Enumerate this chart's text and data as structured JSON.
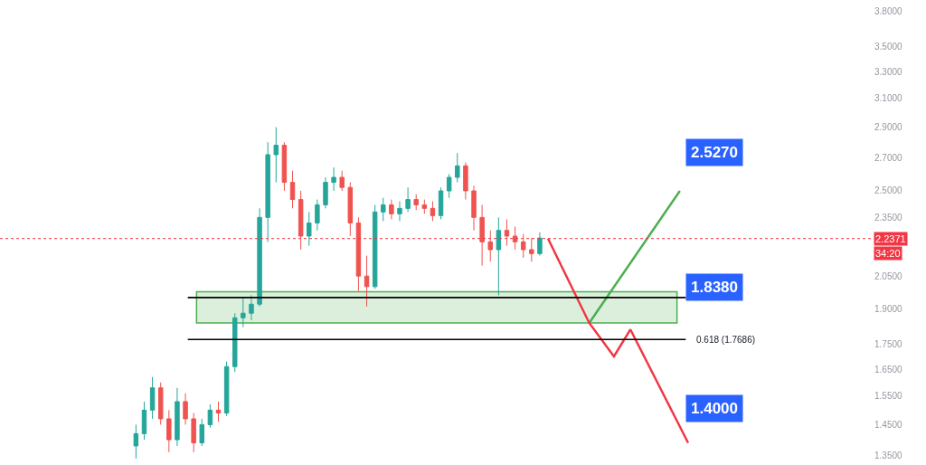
{
  "chart_data": {
    "type": "candlestick",
    "categories": [
      null,
      null,
      null,
      null,
      null,
      null,
      null,
      null,
      null,
      null,
      null,
      null,
      null,
      null,
      null,
      null,
      null,
      null,
      null,
      null,
      null,
      null,
      null,
      null,
      null,
      null,
      null,
      null,
      null,
      null,
      null,
      null,
      null,
      null,
      null,
      null,
      null,
      null,
      null,
      null,
      null,
      null,
      null,
      null,
      null,
      null,
      null,
      null,
      null,
      null,
      null,
      null,
      null,
      null,
      null,
      null,
      null,
      null,
      null,
      null,
      null,
      null,
      null,
      null,
      null,
      null,
      null,
      null,
      null,
      null,
      null,
      null,
      null,
      null,
      null,
      null,
      null,
      null,
      null,
      null,
      null,
      null,
      null,
      null,
      null,
      null,
      null,
      null,
      null,
      null,
      null,
      null,
      null,
      null,
      null,
      null,
      null,
      null,
      null,
      null,
      null,
      null,
      null,
      null,
      null,
      null
    ],
    "ohlc": [
      null,
      null,
      null,
      null,
      null,
      null,
      null,
      null,
      null,
      null,
      null,
      null,
      null,
      null,
      null,
      null,
      [
        1.38,
        1.45,
        1.34,
        1.42
      ],
      [
        1.42,
        1.53,
        1.4,
        1.5
      ],
      [
        1.5,
        1.62,
        1.47,
        1.58
      ],
      [
        1.58,
        1.6,
        1.45,
        1.47
      ],
      [
        1.47,
        1.5,
        1.36,
        1.4
      ],
      [
        1.4,
        1.58,
        1.38,
        1.53
      ],
      [
        1.53,
        1.56,
        1.45,
        1.47
      ],
      [
        1.47,
        1.49,
        1.36,
        1.39
      ],
      [
        1.39,
        1.47,
        1.38,
        1.45
      ],
      [
        1.45,
        1.52,
        1.44,
        1.5
      ],
      [
        1.5,
        1.53,
        1.46,
        1.49
      ],
      [
        1.49,
        1.68,
        1.48,
        1.66
      ],
      [
        1.66,
        1.88,
        1.64,
        1.86
      ],
      [
        1.86,
        1.95,
        1.82,
        1.88
      ],
      [
        1.88,
        1.96,
        1.85,
        1.92
      ],
      [
        1.92,
        2.4,
        1.91,
        2.35
      ],
      [
        2.35,
        2.8,
        2.22,
        2.72
      ],
      [
        2.72,
        2.9,
        2.55,
        2.78
      ],
      [
        2.78,
        2.8,
        2.5,
        2.55
      ],
      [
        2.55,
        2.62,
        2.4,
        2.45
      ],
      [
        2.45,
        2.5,
        2.18,
        2.25
      ],
      [
        2.25,
        2.38,
        2.2,
        2.32
      ],
      [
        2.32,
        2.45,
        2.28,
        2.42
      ],
      [
        2.42,
        2.58,
        2.4,
        2.55
      ],
      [
        2.55,
        2.64,
        2.5,
        2.58
      ],
      [
        2.58,
        2.62,
        2.5,
        2.52
      ],
      [
        2.52,
        2.55,
        2.25,
        2.32
      ],
      [
        2.32,
        2.35,
        1.98,
        2.05
      ],
      [
        2.05,
        2.15,
        1.91,
        2.0
      ],
      [
        2.0,
        2.42,
        1.99,
        2.38
      ],
      [
        2.38,
        2.46,
        2.33,
        2.42
      ],
      [
        2.42,
        2.45,
        2.34,
        2.37
      ],
      [
        2.37,
        2.44,
        2.33,
        2.4
      ],
      [
        2.4,
        2.52,
        2.38,
        2.45
      ],
      [
        2.45,
        2.48,
        2.39,
        2.42
      ],
      [
        2.42,
        2.45,
        2.37,
        2.4
      ],
      [
        2.4,
        2.44,
        2.33,
        2.36
      ],
      [
        2.36,
        2.52,
        2.34,
        2.5
      ],
      [
        2.5,
        2.6,
        2.46,
        2.58
      ],
      [
        2.58,
        2.73,
        2.55,
        2.65
      ],
      [
        2.65,
        2.67,
        2.45,
        2.5
      ],
      [
        2.5,
        2.53,
        2.28,
        2.35
      ],
      [
        2.35,
        2.42,
        2.1,
        2.22
      ],
      [
        2.22,
        2.28,
        2.12,
        2.18
      ],
      [
        2.18,
        2.35,
        1.96,
        2.28
      ],
      [
        2.28,
        2.34,
        2.2,
        2.25
      ],
      [
        2.25,
        2.3,
        2.18,
        2.22
      ],
      [
        2.22,
        2.26,
        2.14,
        2.18
      ],
      [
        2.18,
        2.24,
        2.12,
        2.16
      ],
      [
        2.16,
        2.27,
        2.15,
        2.24
      ],
      null,
      null,
      null,
      null,
      null,
      null,
      null,
      null,
      null,
      null,
      null,
      null,
      null,
      null,
      null,
      null,
      null,
      null,
      null,
      null,
      null,
      null,
      null,
      null,
      null,
      null,
      null,
      null,
      null,
      null,
      null,
      null,
      null,
      null,
      null,
      null,
      null,
      null,
      null,
      null
    ],
    "series": [
      {
        "type": "line",
        "color": "#4caf50",
        "values": [
          null,
          null,
          null,
          null,
          null,
          null,
          null,
          null,
          null,
          null,
          null,
          null,
          null,
          null,
          null,
          null,
          null,
          null,
          null,
          null,
          null,
          null,
          null,
          null,
          null,
          null,
          null,
          null,
          null,
          null,
          null,
          null,
          null,
          null,
          null,
          null,
          null,
          null,
          null,
          null,
          null,
          null,
          null,
          null,
          null,
          null,
          null,
          null,
          null,
          null,
          null,
          null,
          null,
          null,
          null,
          null,
          null,
          null,
          null,
          null,
          null,
          null,
          null,
          null,
          null,
          null,
          null,
          null,
          null,
          null,
          null,
          1.838,
          null,
          null,
          null,
          null,
          null,
          null,
          null,
          null,
          null,
          null,
          2.5,
          null,
          null,
          null,
          null,
          null,
          null,
          null,
          null,
          null,
          null,
          null,
          null,
          null,
          null,
          null,
          null,
          null,
          null,
          null,
          null,
          null,
          null,
          null
        ]
      },
      {
        "type": "line",
        "color": "#f23645",
        "values": [
          null,
          null,
          null,
          null,
          null,
          null,
          null,
          null,
          null,
          null,
          null,
          null,
          null,
          null,
          null,
          null,
          null,
          null,
          null,
          null,
          null,
          null,
          null,
          null,
          null,
          null,
          null,
          null,
          null,
          null,
          null,
          null,
          null,
          null,
          null,
          null,
          null,
          null,
          null,
          null,
          null,
          null,
          null,
          null,
          null,
          null,
          null,
          null,
          null,
          null,
          null,
          null,
          null,
          null,
          null,
          null,
          null,
          null,
          null,
          null,
          null,
          null,
          null,
          null,
          null,
          null,
          2.237,
          null,
          null,
          null,
          null,
          1.838,
          null,
          null,
          1.7,
          null,
          1.81,
          null,
          null,
          null,
          null,
          null,
          null,
          1.39,
          null,
          null,
          null,
          null,
          null,
          null,
          null,
          null,
          null,
          null,
          null,
          null,
          null,
          null,
          null,
          null,
          null,
          null,
          null,
          null,
          null,
          null
        ]
      }
    ],
    "log": "y",
    "ylim": [
      1.32,
      3.9
    ],
    "yticks": [
      {
        "value": 1.35,
        "label": "1.3500"
      },
      {
        "value": 1.45,
        "label": "1.4500"
      },
      {
        "value": 1.55,
        "label": "1.5500"
      },
      {
        "value": 1.65,
        "label": "1.6500"
      },
      {
        "value": 1.75,
        "label": "1.7500"
      },
      {
        "value": 1.9,
        "label": "1.9000"
      },
      {
        "value": 2.05,
        "label": "2.0500"
      },
      {
        "value": 2.35,
        "label": "2.3500"
      },
      {
        "value": 2.5,
        "label": "2.5000"
      },
      {
        "value": 2.7,
        "label": "2.7000"
      },
      {
        "value": 2.9,
        "label": "2.9000"
      },
      {
        "value": 3.1,
        "label": "3.1000"
      },
      {
        "value": 3.3,
        "label": "3.3000"
      },
      {
        "value": 3.5,
        "label": "3.5000"
      },
      {
        "value": 3.8,
        "label": "3.8000"
      }
    ],
    "tick_labels": "y",
    "grid": false,
    "marker": "none",
    "ref_lines": [
      {
        "axis": "y",
        "value": 2.2371,
        "label": "2.2371",
        "color": "#f23645",
        "line_style": "dotted"
      },
      {
        "axis": "y",
        "value": 1.95,
        "color": "#000000",
        "line_style": "solid"
      },
      {
        "axis": "y",
        "value": 1.7686,
        "label": "0.618 (1.7686)",
        "color": "#000000",
        "line_style": "solid"
      }
    ],
    "bands": [
      {
        "axis": "y",
        "from": 1.838,
        "to": 1.976,
        "color": "#4caf50"
      }
    ],
    "annotations": [
      "2.5270",
      "1.8380",
      "1.4000",
      "34:20"
    ]
  }
}
